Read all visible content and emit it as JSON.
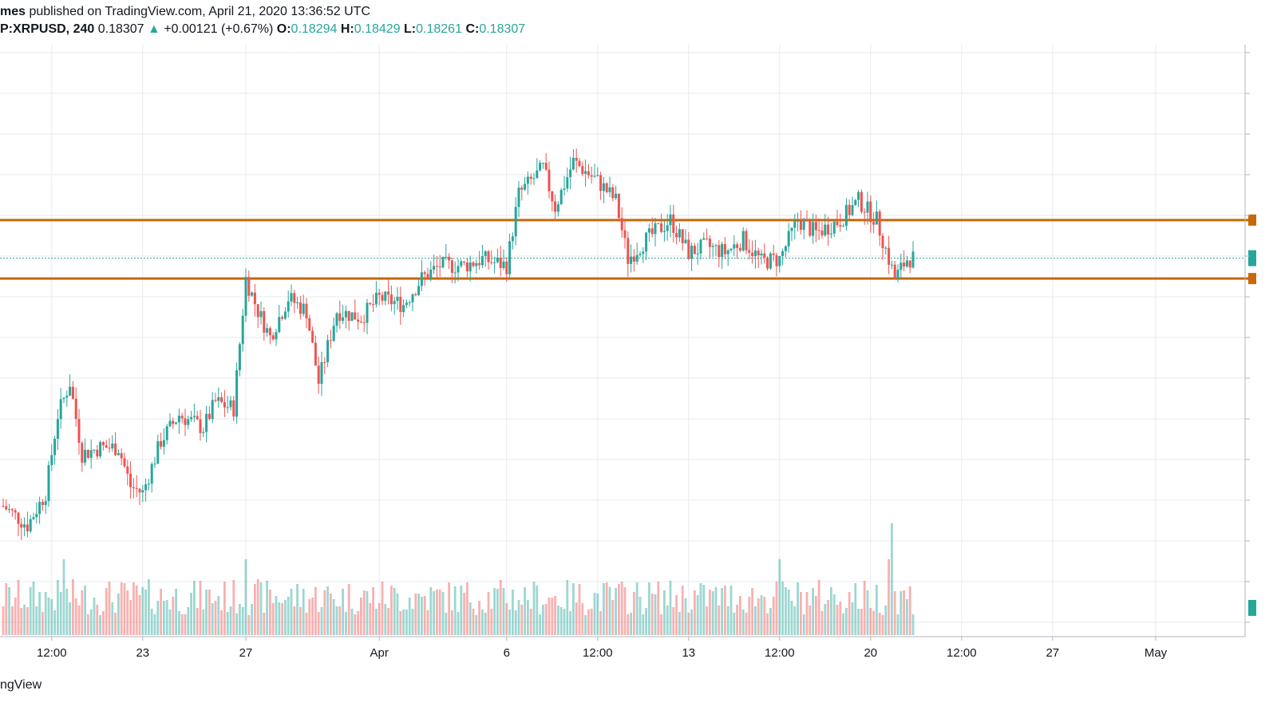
{
  "header": {
    "author_fragment": "mes",
    "published_text": " published on TradingView.com, April 21, 2020 13:36:52 UTC",
    "symbol": "P:XRPUSD, 240",
    "last": "0.18307",
    "arrow": "▲",
    "change": "+0.00121 (+0.67%)",
    "o_label": "O:",
    "o_value": "0.18294",
    "h_label": "H:",
    "h_value": "0.18429",
    "l_label": "L:",
    "l_value": "0.18261",
    "c_label": "C:",
    "c_value": "0.18307"
  },
  "footer": {
    "brand_fragment": "ngView"
  },
  "colors": {
    "up": "#26a69a",
    "down": "#ef5350",
    "level": "#c8680a",
    "grid": "#e6eaf0",
    "last_price_line": "#26a69a"
  },
  "chart_data": {
    "type": "candlestick",
    "symbol": "XRPUSD",
    "interval": "240",
    "grid": true,
    "x_tick_labels": [
      "12:00",
      "23",
      "27",
      "Apr",
      "6",
      "12:00",
      "13",
      "12:00",
      "20",
      "12:00",
      "27",
      "May"
    ],
    "x_tick_bar_index": [
      16,
      46,
      80,
      124,
      166,
      196,
      226,
      256,
      286,
      316,
      346,
      380
    ],
    "horizontal_levels": [
      0.186,
      0.1815
    ],
    "last_price": 0.18307,
    "ylim": [
      0.1575,
      0.1995
    ],
    "candles": [],
    "volume_note": "per-bar volume relative heights",
    "volumes": []
  }
}
